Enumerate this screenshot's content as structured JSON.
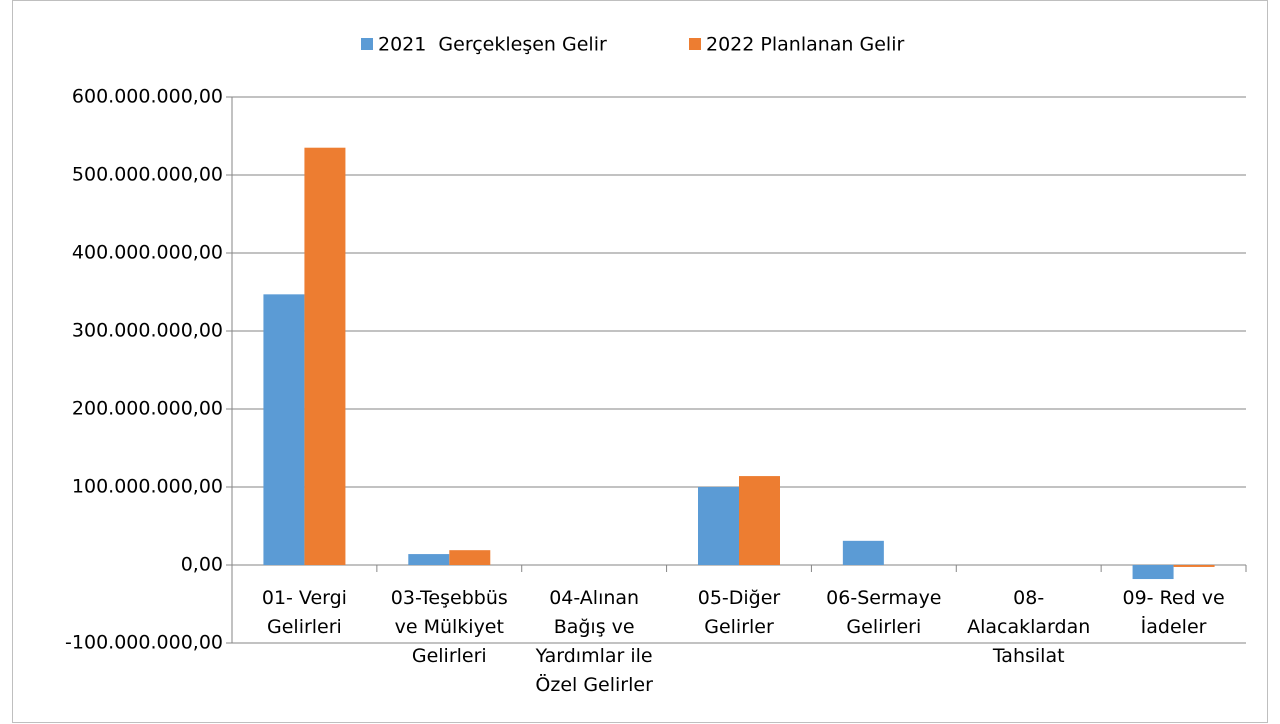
{
  "chart_data": {
    "type": "bar",
    "categories": [
      "01- Vergi Gelirleri",
      "03-Teşebbüs ve Mülkiyet Gelirleri",
      "04-Alınan Bağış ve Yardımlar ile Özel Gelirler",
      "05-Diğer Gelirler",
      "06-Sermaye Gelirleri",
      "08-Alacaklardan Tahsilat",
      "09- Red ve İadeler"
    ],
    "series": [
      {
        "name": "2021  Gerçekleşen Gelir",
        "color": "#5b9bd5",
        "values": [
          347000000,
          14000000,
          0,
          100000000,
          31000000,
          0,
          -18000000
        ]
      },
      {
        "name": "2022 Planlanan Gelir",
        "color": "#ed7d31",
        "values": [
          535000000,
          19000000,
          0,
          114000000,
          0,
          0,
          -2500000
        ]
      }
    ],
    "ylim": [
      -100000000,
      600000000
    ],
    "yticks": [
      {
        "value": -100000000,
        "label": "-100.000.000,00"
      },
      {
        "value": 0,
        "label": "0,00"
      },
      {
        "value": 100000000,
        "label": "100.000.000,00"
      },
      {
        "value": 200000000,
        "label": "200.000.000,00"
      },
      {
        "value": 300000000,
        "label": "300.000.000,00"
      },
      {
        "value": 400000000,
        "label": "400.000.000,00"
      },
      {
        "value": 500000000,
        "label": "500.000.000,00"
      },
      {
        "value": 600000000,
        "label": "600.000.000,00"
      }
    ],
    "grid": true,
    "legend": "top"
  }
}
